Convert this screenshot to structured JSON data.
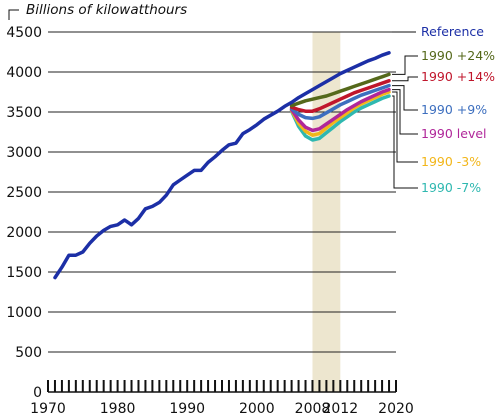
{
  "chart_data": {
    "type": "line",
    "ylabel": "Billions of kilowatthours",
    "xlim": [
      1970,
      2020
    ],
    "ylim": [
      0,
      4500
    ],
    "y_ticks": [
      0,
      500,
      1000,
      1500,
      2000,
      2500,
      3000,
      3500,
      4000,
      4500
    ],
    "x_tick_labels": [
      "1970",
      "1980",
      "1990",
      "2000",
      "2008",
      "2012",
      "2020"
    ],
    "x_tick_values": [
      1970,
      1980,
      1990,
      2000,
      2008,
      2012,
      2020
    ],
    "grid": "horizontal",
    "highlight_band": [
      2008,
      2012
    ],
    "highlight_color": "#ede6cf",
    "series": [
      {
        "name": "Reference",
        "color": "#1c2fa6",
        "x": [
          1971,
          1972,
          1973,
          1974,
          1975,
          1976,
          1977,
          1978,
          1979,
          1980,
          1981,
          1982,
          1983,
          1984,
          1985,
          1986,
          1987,
          1988,
          1989,
          1990,
          1991,
          1992,
          1993,
          1994,
          1995,
          1996,
          1997,
          1998,
          1999,
          2000,
          2001,
          2002,
          2003,
          2004,
          2005,
          2006,
          2007,
          2008,
          2009,
          2010,
          2011,
          2012,
          2013,
          2014,
          2015,
          2016,
          2017,
          2018,
          2019
        ],
        "values": [
          1430,
          1560,
          1710,
          1710,
          1750,
          1860,
          1950,
          2020,
          2070,
          2090,
          2150,
          2090,
          2170,
          2290,
          2320,
          2370,
          2460,
          2590,
          2650,
          2710,
          2770,
          2770,
          2870,
          2940,
          3020,
          3090,
          3110,
          3230,
          3280,
          3340,
          3410,
          3460,
          3510,
          3570,
          3620,
          3680,
          3730,
          3780,
          3830,
          3880,
          3930,
          3980,
          4020,
          4060,
          4100,
          4140,
          4170,
          4210,
          4240
        ]
      },
      {
        "name": "1990 +24%",
        "color": "#55691b",
        "x": [
          2005,
          2006,
          2007,
          2008,
          2009,
          2010,
          2011,
          2012,
          2013,
          2014,
          2015,
          2016,
          2017,
          2018,
          2019
        ],
        "values": [
          3580,
          3610,
          3640,
          3660,
          3680,
          3700,
          3730,
          3760,
          3790,
          3820,
          3850,
          3880,
          3910,
          3940,
          3970
        ]
      },
      {
        "name": "1990 +14%",
        "color": "#c0162c",
        "x": [
          2005,
          2006,
          2007,
          2008,
          2009,
          2010,
          2011,
          2012,
          2013,
          2014,
          2015,
          2016,
          2017,
          2018,
          2019
        ],
        "values": [
          3560,
          3530,
          3510,
          3510,
          3540,
          3580,
          3620,
          3660,
          3700,
          3740,
          3770,
          3800,
          3830,
          3860,
          3890
        ]
      },
      {
        "name": "1990 +9%",
        "color": "#3d6fbf",
        "x": [
          2005,
          2006,
          2007,
          2008,
          2009,
          2010,
          2011,
          2012,
          2013,
          2014,
          2015,
          2016,
          2017,
          2018,
          2019
        ],
        "values": [
          3540,
          3470,
          3430,
          3420,
          3440,
          3490,
          3540,
          3590,
          3630,
          3670,
          3710,
          3740,
          3770,
          3800,
          3830
        ]
      },
      {
        "name": "1990 level",
        "color": "#b0279a",
        "x": [
          2005,
          2006,
          2007,
          2008,
          2009,
          2010,
          2011,
          2012,
          2013,
          2014,
          2015,
          2016,
          2017,
          2018,
          2019
        ],
        "values": [
          3530,
          3400,
          3310,
          3270,
          3290,
          3350,
          3410,
          3470,
          3530,
          3580,
          3630,
          3670,
          3710,
          3750,
          3780
        ]
      },
      {
        "name": "1990 -3%",
        "color": "#f2b61a",
        "x": [
          2005,
          2006,
          2007,
          2008,
          2009,
          2010,
          2011,
          2012,
          2013,
          2014,
          2015,
          2016,
          2017,
          2018,
          2019
        ],
        "values": [
          3520,
          3360,
          3260,
          3210,
          3230,
          3300,
          3370,
          3430,
          3490,
          3550,
          3600,
          3640,
          3680,
          3720,
          3750
        ]
      },
      {
        "name": "1990 -7%",
        "color": "#2fb8b0",
        "x": [
          2005,
          2006,
          2007,
          2008,
          2009,
          2010,
          2011,
          2012,
          2013,
          2014,
          2015,
          2016,
          2017,
          2018,
          2019
        ],
        "values": [
          3510,
          3320,
          3200,
          3150,
          3170,
          3240,
          3310,
          3380,
          3440,
          3500,
          3550,
          3590,
          3630,
          3670,
          3700
        ]
      }
    ]
  }
}
